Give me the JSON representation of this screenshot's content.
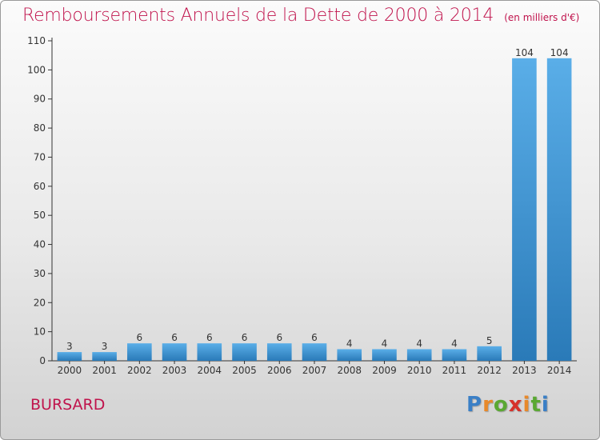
{
  "header": {
    "title": "Remboursements Annuels de la Dette de 2000 à 2014",
    "unit": "(en milliers d'€)"
  },
  "footer": {
    "commune": "BURSARD",
    "logo_text": "Proxiti",
    "logo_colors": [
      "#3a7fc6",
      "#e8892a",
      "#5aa832",
      "#d6312b",
      "#e8892a",
      "#5aa832",
      "#3a7fc6"
    ]
  },
  "colors": {
    "title": "#c0134c",
    "bar_top": "#5aaee8",
    "bar_bottom": "#2a7ab8"
  },
  "chart_data": {
    "type": "bar",
    "title": "Remboursements Annuels de la Dette de 2000 à 2014",
    "subtitle": "(en milliers d'€)",
    "categories": [
      "2000",
      "2001",
      "2002",
      "2003",
      "2004",
      "2005",
      "2006",
      "2007",
      "2008",
      "2009",
      "2010",
      "2011",
      "2012",
      "2013",
      "2014"
    ],
    "values": [
      3,
      3,
      6,
      6,
      6,
      6,
      6,
      6,
      4,
      4,
      4,
      4,
      5,
      104,
      104
    ],
    "ylim": [
      0,
      110
    ],
    "yticks": [
      0,
      10,
      20,
      30,
      40,
      50,
      60,
      70,
      80,
      90,
      100,
      110
    ],
    "grid": false,
    "data_labels": true
  }
}
